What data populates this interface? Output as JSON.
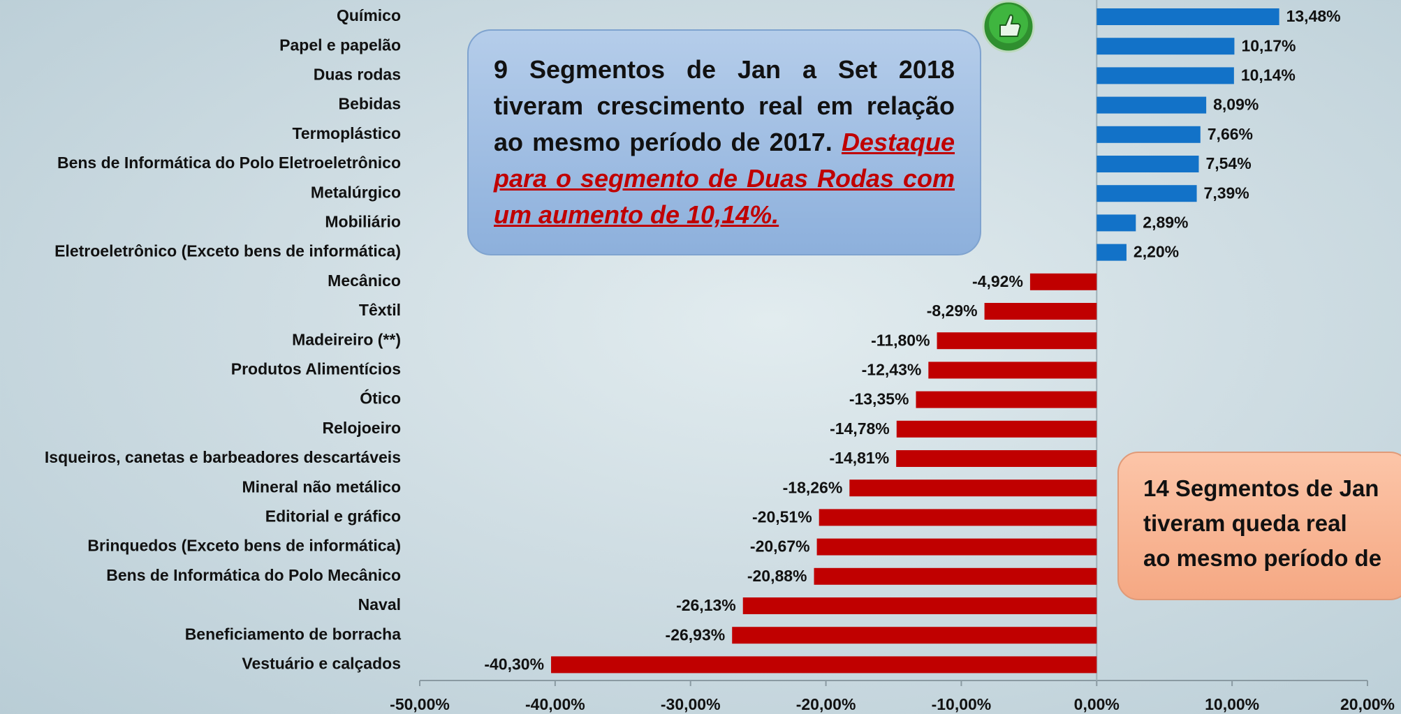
{
  "chart_data": {
    "type": "bar",
    "orientation": "horizontal",
    "categories": [
      "Químico",
      "Papel e papelão",
      "Duas rodas",
      "Bebidas",
      "Termoplástico",
      "Bens de Informática do Polo Eletroeletrônico",
      "Metalúrgico",
      "Mobiliário",
      "Eletroeletrônico (Exceto bens de informática)",
      "Mecânico",
      "Têxtil",
      "Madeireiro (**)",
      "Produtos Alimentícios",
      "Ótico",
      "Relojoeiro",
      "Isqueiros, canetas e barbeadores descartáveis",
      "Mineral não metálico",
      "Editorial e gráfico",
      "Brinquedos (Exceto bens de informática)",
      "Bens de Informática do Polo Mecânico",
      "Naval",
      "Beneficiamento de borracha",
      "Vestuário e calçados"
    ],
    "values": [
      13.48,
      10.17,
      10.14,
      8.09,
      7.66,
      7.54,
      7.39,
      2.89,
      2.2,
      -4.92,
      -8.29,
      -11.8,
      -12.43,
      -13.35,
      -14.78,
      -14.81,
      -18.26,
      -20.51,
      -20.67,
      -20.88,
      -26.13,
      -26.93,
      -40.3
    ],
    "value_labels": [
      "13,48%",
      "10,17%",
      "10,14%",
      "8,09%",
      "7,66%",
      "7,54%",
      "7,39%",
      "2,89%",
      "2,20%",
      "-4,92%",
      "-8,29%",
      "-11,80%",
      "-12,43%",
      "-13,35%",
      "-14,78%",
      "-14,81%",
      "-18,26%",
      "-20,51%",
      "-20,67%",
      "-20,88%",
      "-26,13%",
      "-26,93%",
      "-40,30%"
    ],
    "positive_color": "#1272c8",
    "negative_color": "#c00000",
    "xlim": [
      -50,
      20
    ],
    "xticks": [
      {
        "value": -50,
        "label": "-50,00%"
      },
      {
        "value": -40,
        "label": "-40,00%"
      },
      {
        "value": -30,
        "label": "-30,00%"
      },
      {
        "value": -20,
        "label": "-20,00%"
      },
      {
        "value": -10,
        "label": "-10,00%"
      },
      {
        "value": 0,
        "label": "0,00%"
      },
      {
        "value": 10,
        "label": "10,00%"
      },
      {
        "value": 20,
        "label": "20,00%"
      }
    ],
    "annotations": [
      {
        "text": "9 Segmentos de Jan a Set 2018 tiveram crescimento real em relação ao mesmo período de 2017.",
        "highlight": "Destaque para o segmento de Duas Rodas com um aumento de 10,14%."
      },
      {
        "lines": [
          "14 Segmentos de Jan",
          "tiveram queda real",
          "ao mesmo período de"
        ]
      }
    ]
  }
}
